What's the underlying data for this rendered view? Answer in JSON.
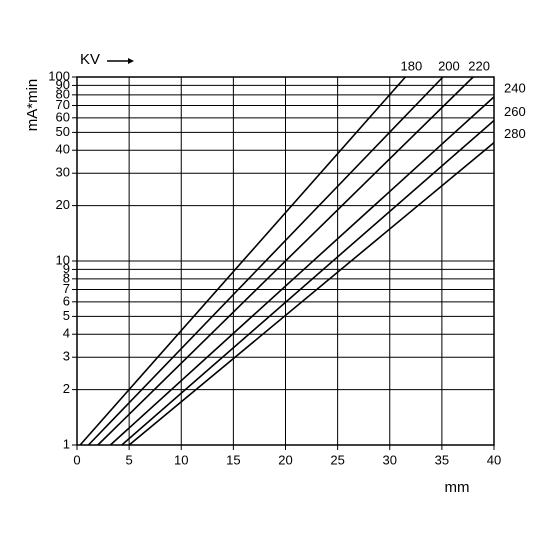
{
  "chart_data": {
    "type": "line",
    "legend_title": "KV",
    "x_label": "mm",
    "y_label": "mA*min",
    "xlim": [
      0,
      40
    ],
    "xticks": [
      0,
      5,
      10,
      15,
      20,
      25,
      30,
      35,
      40
    ],
    "ylim": [
      1,
      100
    ],
    "y_log": true,
    "yticks": [
      1,
      2,
      3,
      4,
      5,
      6,
      7,
      8,
      9,
      10,
      20,
      30,
      40,
      50,
      60,
      70,
      80,
      90,
      100
    ],
    "grid": true,
    "series": [
      {
        "name": "180",
        "color": "#000000",
        "x": [
          0.3,
          31.5
        ],
        "values": [
          1,
          100
        ]
      },
      {
        "name": "200",
        "color": "#000000",
        "x": [
          1.1,
          35.1
        ],
        "values": [
          1,
          100
        ]
      },
      {
        "name": "220",
        "color": "#000000",
        "x": [
          2.0,
          38.0
        ],
        "values": [
          1,
          100
        ]
      },
      {
        "name": "240",
        "color": "#000000",
        "x": [
          3.2,
          40
        ],
        "values": [
          1,
          78
        ]
      },
      {
        "name": "260",
        "color": "#000000",
        "x": [
          4.3,
          40
        ],
        "values": [
          1,
          58
        ]
      },
      {
        "name": "280",
        "color": "#000000",
        "x": [
          5.0,
          40
        ],
        "values": [
          1,
          44
        ]
      }
    ]
  }
}
